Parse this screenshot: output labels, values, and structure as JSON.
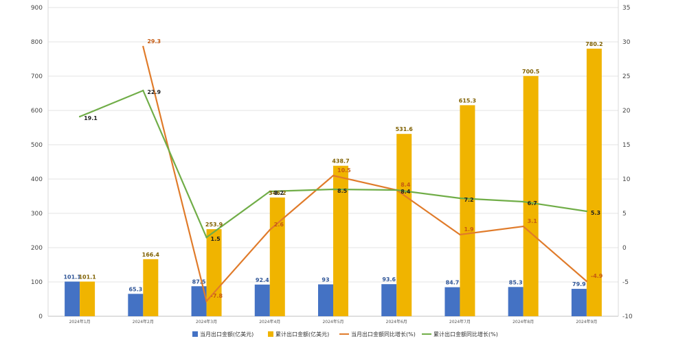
{
  "chart_data": {
    "type": "bar",
    "categories": [
      "2024年1月",
      "2024年2月",
      "2024年3月",
      "2024年4月",
      "2024年5月",
      "2024年6月",
      "2024年7月",
      "2024年8月",
      "2024年9月"
    ],
    "series": [
      {
        "name": "当月出口金额(亿美元)",
        "type": "bar",
        "axis": "left",
        "color": "#4472C4",
        "values": [
          101.1,
          65.3,
          87.5,
          92.4,
          93,
          93.6,
          84.7,
          85.3,
          79.9
        ],
        "labels": [
          "101.1",
          "65.3",
          "87.5",
          "92.4",
          "93",
          "93.6",
          "84.7",
          "85.3",
          "79.9"
        ]
      },
      {
        "name": "累计出口金额(亿美元)",
        "type": "bar",
        "axis": "left",
        "color": "#F0B400",
        "values": [
          101.1,
          166.4,
          253.9,
          346.2,
          438.7,
          531.6,
          615.3,
          700.5,
          780.2
        ],
        "labels": [
          "101.1",
          "166.4",
          "253.9",
          "346.2",
          "438.7",
          "531.6",
          "615.3",
          "700.5",
          "780.2"
        ]
      },
      {
        "name": "当月出口金额同比增长(%)",
        "type": "line",
        "axis": "right",
        "color": "#E07B2A",
        "values": [
          null,
          29.3,
          -7.8,
          2.6,
          10.5,
          8.4,
          1.9,
          3.1,
          -4.9
        ],
        "labels": [
          "",
          "29.3",
          "-7.8",
          "2.6",
          "10.5",
          "8.4",
          "1.9",
          "3.1",
          "-4.9"
        ]
      },
      {
        "name": "累计出口金额同比增长(%)",
        "type": "line",
        "axis": "right",
        "color": "#70AD47",
        "values": [
          19.1,
          22.9,
          1.5,
          8.2,
          8.5,
          8.4,
          7.2,
          6.7,
          5.3
        ],
        "labels": [
          "19.1",
          "22.9",
          "1.5",
          "8.2",
          "8.5",
          "8.4",
          "7.2",
          "6.7",
          "5.3"
        ]
      }
    ],
    "ylim_left": [
      0,
      900
    ],
    "yticks_left": [
      "0",
      "100",
      "200",
      "300",
      "400",
      "500",
      "600",
      "700",
      "800",
      "900"
    ],
    "ylim_right": [
      -10,
      35
    ],
    "yticks_right": [
      "-10",
      "-5",
      "0",
      "5",
      "10",
      "15",
      "20",
      "25",
      "30",
      "35"
    ],
    "grid": "horizontal",
    "legend_position": "bottom"
  }
}
